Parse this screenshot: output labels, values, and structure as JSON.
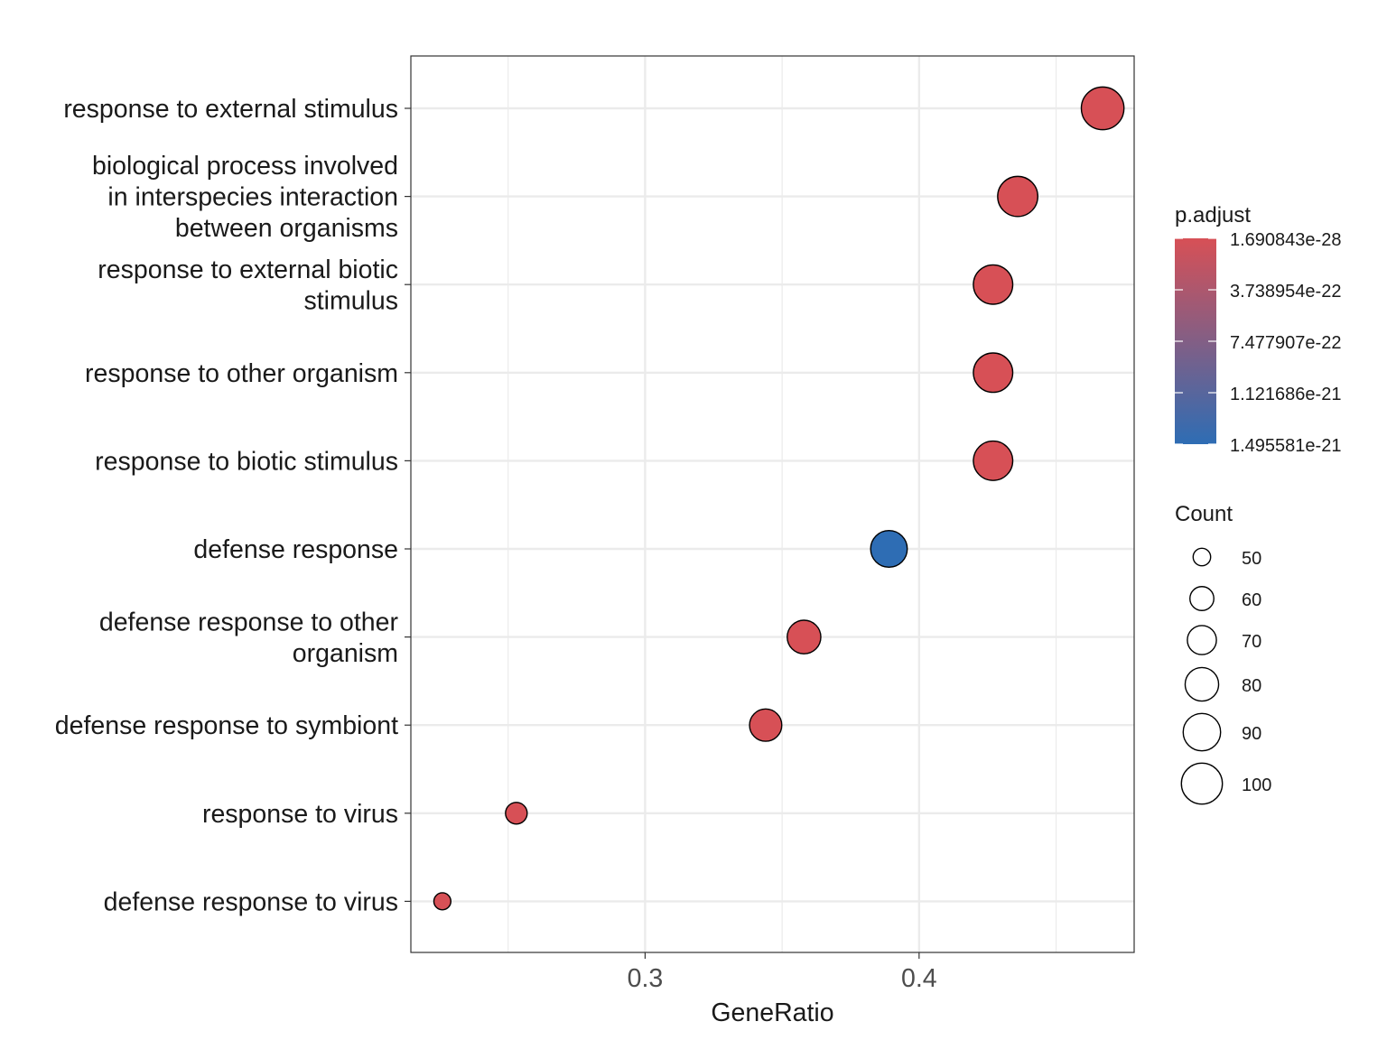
{
  "colors": {
    "low_p": "#d75056",
    "high_p": "#2e6db4",
    "grid": "#ebebeb",
    "border": "#333333",
    "text": "#1a1a1a",
    "point_outline": "#000000"
  },
  "chart_data": {
    "type": "scatter",
    "xlabel": "GeneRatio",
    "ylabel": "",
    "xlim": [
      0.2145,
      0.4785
    ],
    "x_ticks": [
      0.3,
      0.4
    ],
    "x_tick_labels": [
      "0.3",
      "0.4"
    ],
    "grid": true,
    "categories": [
      [
        "response to external stimulus"
      ],
      [
        "biological process involved",
        "in interspecies interaction",
        "between organisms"
      ],
      [
        "response to external biotic",
        "stimulus"
      ],
      [
        "response to other organism"
      ],
      [
        "response to biotic stimulus"
      ],
      [
        "defense response"
      ],
      [
        "defense response to other",
        "organism"
      ],
      [
        "defense response to symbiont"
      ],
      [
        "response to virus"
      ],
      [
        "defense response to virus"
      ]
    ],
    "points": [
      {
        "term": "response to external stimulus",
        "x": 0.467,
        "count": 97,
        "p_adjust": 1.690843e-28
      },
      {
        "term": "biological process involved in interspecies interaction between organisms",
        "x": 0.436,
        "count": 90,
        "p_adjust": 1.690843e-28
      },
      {
        "term": "response to external biotic stimulus",
        "x": 0.427,
        "count": 88,
        "p_adjust": 1.690843e-28
      },
      {
        "term": "response to other organism",
        "x": 0.427,
        "count": 88,
        "p_adjust": 1.690843e-28
      },
      {
        "term": "response to biotic stimulus",
        "x": 0.427,
        "count": 88,
        "p_adjust": 1.690843e-28
      },
      {
        "term": "defense response",
        "x": 0.389,
        "count": 81,
        "p_adjust": 1.495581e-21
      },
      {
        "term": "defense response to other organism",
        "x": 0.358,
        "count": 74,
        "p_adjust": 1.690843e-28
      },
      {
        "term": "defense response to symbiont",
        "x": 0.344,
        "count": 71,
        "p_adjust": 1.690843e-28
      },
      {
        "term": "response to virus",
        "x": 0.253,
        "count": 52,
        "p_adjust": 1.690843e-28
      },
      {
        "term": "defense response to virus",
        "x": 0.226,
        "count": 46,
        "p_adjust": 1.690843e-28
      }
    ],
    "color_legend": {
      "title": "p.adjust",
      "labels": [
        "1.690843e-28",
        "3.738954e-22",
        "7.477907e-22",
        "1.121686e-21",
        "1.495581e-21"
      ],
      "values": [
        1.690843e-28,
        3.738954e-22,
        7.477907e-22,
        1.121686e-21,
        1.495581e-21
      ]
    },
    "size_legend": {
      "title": "Count",
      "values": [
        50,
        60,
        70,
        80,
        90,
        100
      ],
      "labels": [
        "50",
        "60",
        "70",
        "80",
        "90",
        "100"
      ]
    },
    "legend_position": "right"
  }
}
